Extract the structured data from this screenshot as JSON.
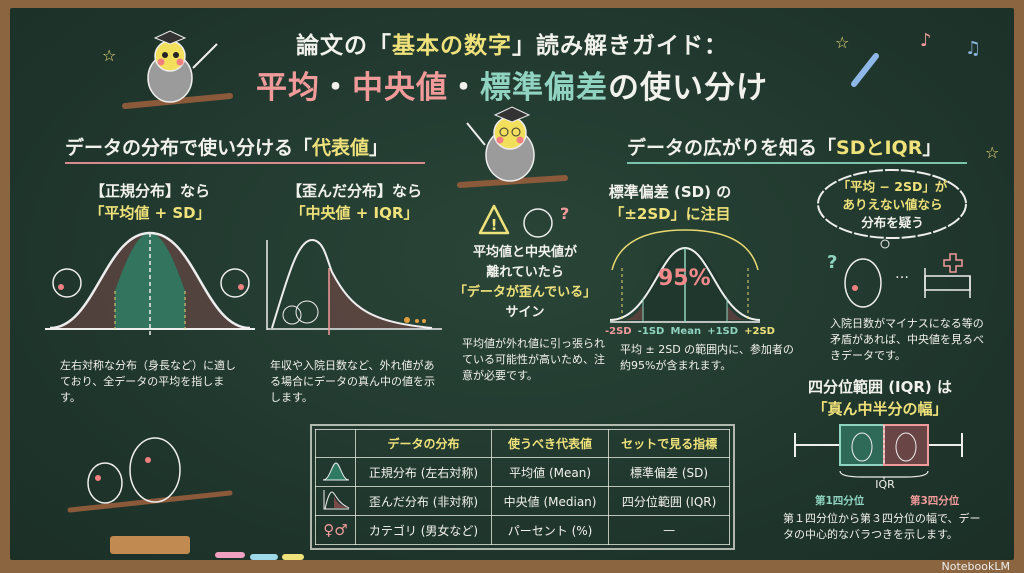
{
  "title": {
    "line1_a": "論文の「",
    "line1_b": "基本の数字",
    "line1_c": "」読み解きガイド：",
    "line2_a": "平均",
    "line2_dot1": "・",
    "line2_b": "中央値",
    "line2_dot2": "・",
    "line2_c": "標準偏差",
    "line2_d": "の使い分け"
  },
  "left": {
    "header_a": "データの分布で使い分ける「",
    "header_b": "代表値",
    "header_c": "」",
    "normal": {
      "label": "【正規分布】なら",
      "pick": "「平均値 + SD」",
      "desc": "左右対称な分布（身長など）に適しており、全データの平均を指します。"
    },
    "skewed": {
      "label": "【歪んだ分布】なら",
      "pick": "「中央値 + IQR」",
      "desc": "年収や入院日数など、外れ値がある場合にデータの真ん中の値を示します。"
    }
  },
  "middle": {
    "warn_1": "平均値と中央値が",
    "warn_2": "離れていたら",
    "warn_3": "「データが歪んでいる」",
    "warn_4": "サイン",
    "desc": "平均値が外れ値に引っ張られている可能性が高いため、注意が必要です。"
  },
  "right": {
    "header_a": "データの広がりを知る「",
    "header_b": "SDとIQR",
    "header_c": "」",
    "sd": {
      "label_1": "標準偏差 (SD) の",
      "label_2": "「±2SD」に注目",
      "percent": "95%",
      "axis": [
        "-2SD",
        "-1SD",
        "Mean",
        "+1SD",
        "+2SD"
      ],
      "desc": "平均 ± 2SD の範囲内に、参加者の約95%が含まれます。"
    },
    "cloud": {
      "line1": "「平均 − 2SD」が",
      "line2": "ありえない値なら",
      "line3": "分布を疑う",
      "ellipsis": "…",
      "desc": "入院日数がマイナスになる等の矛盾があれば、中央値を見るべきデータです。"
    },
    "iqr": {
      "title_1": "四分位範囲 (IQR) は",
      "title_2": "「真ん中半分の幅」",
      "label": "IQR",
      "q1": "第1四分位",
      "q3": "第3四分位",
      "desc": "第１四分位から第３四分位の幅で、データの中心的なバラつきを示します。"
    }
  },
  "table": {
    "headers": [
      "データの分布",
      "使うべき代表値",
      "セットで見る指標"
    ],
    "rows": [
      {
        "icon": "normal-curve-icon",
        "cells": [
          "正規分布 (左右対称)",
          "平均値 (Mean)",
          "標準偏差 (SD)"
        ]
      },
      {
        "icon": "skewed-curve-icon",
        "cells": [
          "歪んだ分布 (非対称)",
          "中央値 (Median)",
          "四分位範囲 (IQR)"
        ]
      },
      {
        "icon": "gender-symbols-icon",
        "symbols": "♀♂",
        "cells": [
          "カテゴリ (男女など)",
          "パーセント (%)",
          "—"
        ]
      }
    ]
  },
  "colors": {
    "board": "#20372d",
    "frame": "#8a6540",
    "yellow": "#f0e27a",
    "pink": "#f09a9a",
    "teal": "#8fd3c0"
  },
  "branding": "NotebookLM"
}
